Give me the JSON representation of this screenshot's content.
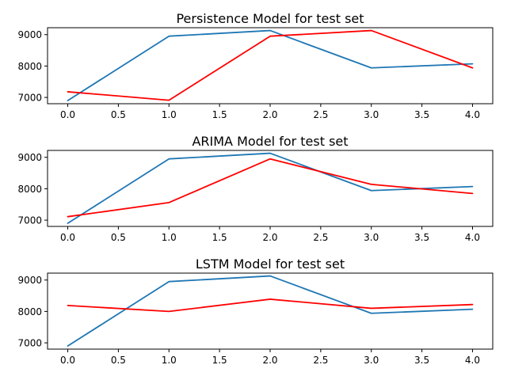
{
  "chart_data": [
    {
      "type": "line",
      "title": "Persistence Model for test set",
      "x": [
        0,
        1,
        2,
        3,
        4
      ],
      "series": [
        {
          "color": "#1f77b4",
          "values": [
            6900,
            8950,
            9130,
            7940,
            8070
          ]
        },
        {
          "color": "#ff0000",
          "values": [
            7180,
            6910,
            8950,
            9130,
            7940
          ]
        }
      ],
      "xlim": [
        -0.2,
        4.2
      ],
      "ylim": [
        6800,
        9220
      ],
      "xticks": [
        0.0,
        0.5,
        1.0,
        1.5,
        2.0,
        2.5,
        3.0,
        3.5,
        4.0
      ],
      "xtick_labels": [
        "0.0",
        "0.5",
        "1.0",
        "1.5",
        "2.0",
        "2.5",
        "3.0",
        "3.5",
        "4.0"
      ],
      "yticks": [
        7000,
        8000,
        9000
      ],
      "ytick_labels": [
        "7000",
        "8000",
        "9000"
      ],
      "grid": false
    },
    {
      "type": "line",
      "title": "ARIMA Model for test set",
      "x": [
        0,
        1,
        2,
        3,
        4
      ],
      "series": [
        {
          "color": "#1f77b4",
          "values": [
            6900,
            8950,
            9130,
            7940,
            8070
          ]
        },
        {
          "color": "#ff0000",
          "values": [
            7110,
            7560,
            8950,
            8140,
            7850
          ]
        }
      ],
      "xlim": [
        -0.2,
        4.2
      ],
      "ylim": [
        6800,
        9220
      ],
      "xticks": [
        0.0,
        0.5,
        1.0,
        1.5,
        2.0,
        2.5,
        3.0,
        3.5,
        4.0
      ],
      "xtick_labels": [
        "0.0",
        "0.5",
        "1.0",
        "1.5",
        "2.0",
        "2.5",
        "3.0",
        "3.5",
        "4.0"
      ],
      "yticks": [
        7000,
        8000,
        9000
      ],
      "ytick_labels": [
        "7000",
        "8000",
        "9000"
      ],
      "grid": false
    },
    {
      "type": "line",
      "title": "LSTM Model for test set",
      "x": [
        0,
        1,
        2,
        3,
        4
      ],
      "series": [
        {
          "color": "#1f77b4",
          "values": [
            6900,
            8950,
            9130,
            7940,
            8070
          ]
        },
        {
          "color": "#ff0000",
          "values": [
            8190,
            8000,
            8390,
            8100,
            8220
          ]
        }
      ],
      "xlim": [
        -0.2,
        4.2
      ],
      "ylim": [
        6800,
        9220
      ],
      "xticks": [
        0.0,
        0.5,
        1.0,
        1.5,
        2.0,
        2.5,
        3.0,
        3.5,
        4.0
      ],
      "xtick_labels": [
        "0.0",
        "0.5",
        "1.0",
        "1.5",
        "2.0",
        "2.5",
        "3.0",
        "3.5",
        "4.0"
      ],
      "yticks": [
        7000,
        8000,
        9000
      ],
      "ytick_labels": [
        "7000",
        "8000",
        "9000"
      ],
      "grid": false
    }
  ]
}
